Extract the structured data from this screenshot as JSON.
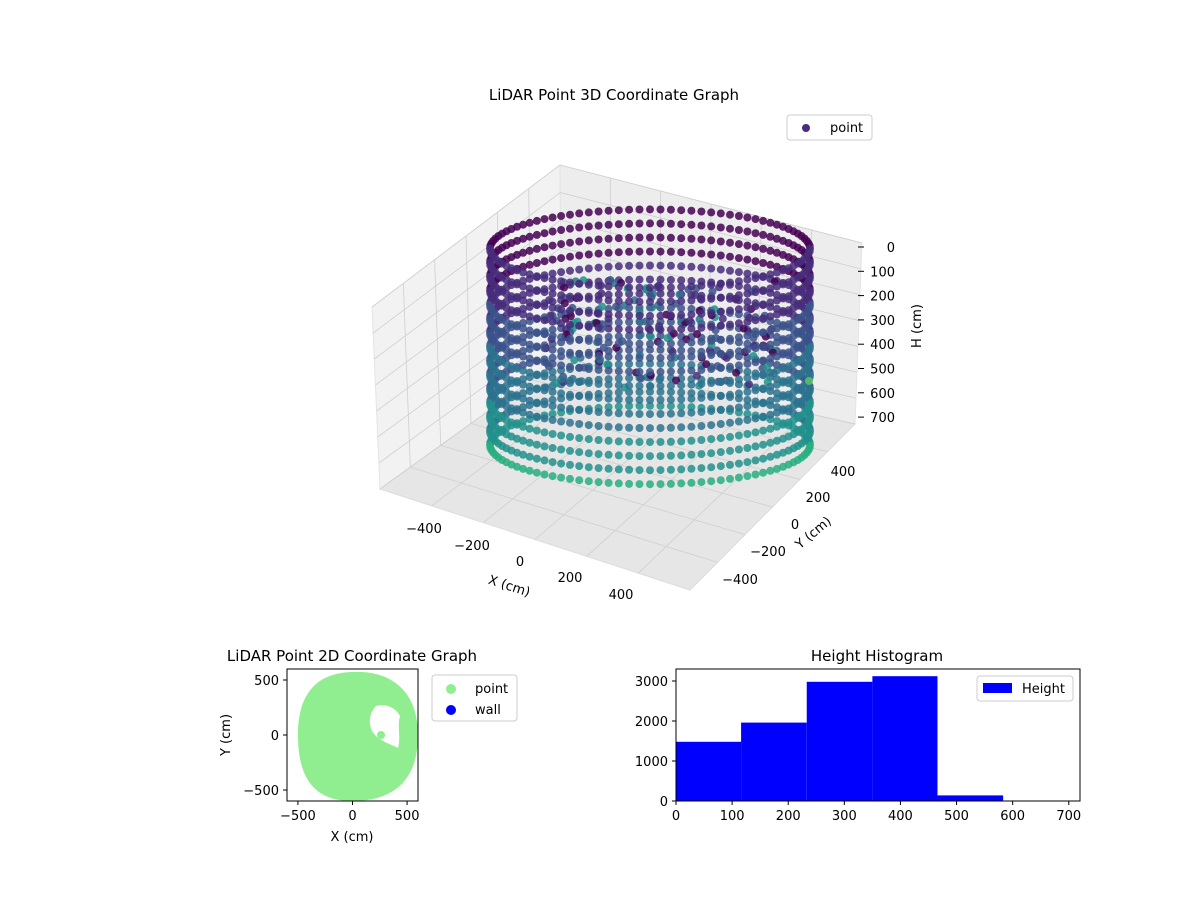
{
  "colors": {
    "viridis": [
      "#440154",
      "#472d7b",
      "#3b528b",
      "#2c728e",
      "#21918c",
      "#28ae80",
      "#5ec962"
    ],
    "point_2d": "#90ee90",
    "wall": "#0000ff",
    "hist": "#0000ff",
    "pane": "#f2f2f2",
    "grid": "#cfcfcf"
  },
  "chart_data": [
    {
      "type": "scatter",
      "title": "LiDAR Point 3D Coordinate Graph",
      "xlabel": "X (cm)",
      "ylabel": "Y (cm)",
      "zlabel": "H (cm)",
      "xlim": [
        -600,
        600
      ],
      "ylim": [
        -600,
        600
      ],
      "zlim": [
        0,
        700
      ],
      "z_inverted": true,
      "x_ticks": [
        "−400",
        "−200",
        "0",
        "200",
        "400"
      ],
      "y_ticks": [
        "−400",
        "−200",
        "0",
        "200",
        "400"
      ],
      "z_ticks": [
        "0",
        "100",
        "200",
        "300",
        "400",
        "500",
        "600",
        "700"
      ],
      "legend": [
        {
          "name": "point"
        }
      ],
      "legend_position": "top-right",
      "grid": true,
      "description_colormap": "viridis"
    },
    {
      "type": "scatter",
      "title": "LiDAR Point 2D Coordinate Graph",
      "xlabel": "X (cm)",
      "ylabel": "Y (cm)",
      "xlim": [
        -600,
        600
      ],
      "ylim": [
        -600,
        600
      ],
      "x_ticks": [
        "−500",
        "0",
        "500"
      ],
      "y_ticks": [
        "500",
        "0",
        "−500"
      ],
      "series": [
        {
          "name": "point"
        },
        {
          "name": "wall"
        }
      ],
      "legend_position": "outside-right"
    },
    {
      "type": "bar",
      "title": "Height Histogram",
      "bin_edges": [
        0,
        116,
        233,
        350,
        466,
        583,
        700
      ],
      "values": [
        1480,
        1960,
        2980,
        3120,
        140,
        0
      ],
      "ylim": [
        0,
        3300
      ],
      "xlim": [
        0,
        720
      ],
      "x_ticks": [
        "0",
        "100",
        "200",
        "300",
        "400",
        "500",
        "600",
        "700"
      ],
      "y_ticks": [
        "0",
        "1000",
        "2000",
        "3000"
      ],
      "legend": [
        {
          "name": "Height"
        }
      ],
      "legend_position": "top-right"
    }
  ]
}
